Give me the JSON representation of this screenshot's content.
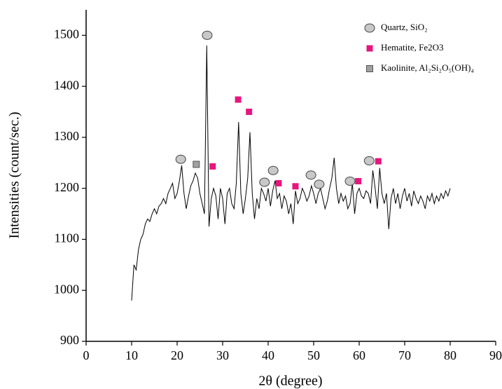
{
  "chart_data": {
    "type": "line",
    "xlabel": "2θ (degree)",
    "ylabel": "Intensities (count/sec.)",
    "xlim": [
      0,
      90
    ],
    "ylim": [
      900,
      1550
    ],
    "xticks": [
      0,
      10,
      20,
      30,
      40,
      50,
      60,
      70,
      80,
      90
    ],
    "yticks": [
      900,
      1000,
      1100,
      1200,
      1300,
      1400,
      1500
    ],
    "color": "#000000",
    "x": [
      10,
      10.5,
      11,
      11.5,
      12,
      12.5,
      13,
      13.5,
      14,
      14.5,
      15,
      15.5,
      16,
      16.5,
      17,
      17.5,
      18,
      18.5,
      19,
      19.5,
      20,
      20.5,
      21,
      21.5,
      22,
      22.5,
      23,
      23.5,
      24,
      24.5,
      25,
      25.5,
      26,
      26.5,
      27,
      27.5,
      28,
      28.5,
      29,
      29.5,
      30,
      30.5,
      31,
      31.5,
      32,
      32.5,
      33,
      33.5,
      34,
      34.5,
      35,
      35.5,
      36,
      36.5,
      37,
      37.5,
      38,
      38.5,
      39,
      39.5,
      40,
      40.5,
      41,
      41.5,
      42,
      42.5,
      43,
      43.5,
      44,
      44.5,
      45,
      45.5,
      46,
      46.5,
      47,
      47.5,
      48,
      48.5,
      49,
      49.5,
      50,
      50.5,
      51,
      51.5,
      52,
      52.5,
      53,
      53.5,
      54,
      54.5,
      55,
      55.5,
      56,
      56.5,
      57,
      57.5,
      58,
      58.5,
      59,
      59.5,
      60,
      60.5,
      61,
      61.5,
      62,
      62.5,
      63,
      63.5,
      64,
      64.5,
      65,
      65.5,
      66,
      66.5,
      67,
      67.5,
      68,
      68.5,
      69,
      69.5,
      70,
      70.5,
      71,
      71.5,
      72,
      72.5,
      73,
      73.5,
      74,
      74.5,
      75,
      75.5,
      76,
      76.5,
      77,
      77.5,
      78,
      78.5,
      79,
      79.5,
      80
    ],
    "values": [
      980,
      1050,
      1040,
      1080,
      1100,
      1110,
      1130,
      1140,
      1135,
      1150,
      1160,
      1150,
      1165,
      1170,
      1180,
      1170,
      1190,
      1200,
      1210,
      1180,
      1190,
      1215,
      1245,
      1190,
      1160,
      1185,
      1205,
      1215,
      1230,
      1220,
      1190,
      1170,
      1150,
      1480,
      1125,
      1180,
      1200,
      1185,
      1140,
      1200,
      1180,
      1130,
      1190,
      1200,
      1170,
      1160,
      1210,
      1330,
      1190,
      1150,
      1180,
      1220,
      1310,
      1190,
      1140,
      1180,
      1160,
      1200,
      1190,
      1175,
      1200,
      1165,
      1195,
      1215,
      1180,
      1190,
      1160,
      1185,
      1175,
      1150,
      1170,
      1130,
      1195,
      1170,
      1180,
      1200,
      1190,
      1175,
      1185,
      1205,
      1190,
      1170,
      1190,
      1200,
      1180,
      1160,
      1175,
      1200,
      1220,
      1260,
      1200,
      1170,
      1190,
      1175,
      1185,
      1160,
      1170,
      1210,
      1150,
      1190,
      1200,
      1185,
      1180,
      1195,
      1190,
      1170,
      1235,
      1200,
      1160,
      1240,
      1190,
      1170,
      1190,
      1120,
      1180,
      1200,
      1170,
      1190,
      1160,
      1185,
      1200,
      1175,
      1190,
      1165,
      1195,
      1180,
      1170,
      1185,
      1175,
      1160,
      1185,
      1175,
      1190,
      1170,
      1185,
      1175,
      1190,
      1180,
      1195,
      1185,
      1200
    ],
    "series": [
      {
        "name": "Quartz, SiO₂",
        "type": "scatter",
        "marker": "circle",
        "color": "#c8c8c8",
        "x": [
          20.8,
          26.6,
          39.2,
          41.1,
          49.4,
          51.2,
          58,
          62.2
        ],
        "values": [
          1257,
          1500,
          1212,
          1235,
          1226,
          1208,
          1214,
          1254
        ]
      },
      {
        "name": "Hematite, Fe2O3",
        "type": "scatter",
        "marker": "square",
        "color": "#e6167e",
        "x": [
          27.8,
          33.4,
          35.8,
          42.3,
          46,
          59.8,
          64.2
        ],
        "values": [
          1243,
          1374,
          1350,
          1210,
          1204,
          1214,
          1253
        ]
      },
      {
        "name": "Kaolinite, Al₂Si₂O₅(OH)₄",
        "type": "scatter",
        "marker": "square",
        "color": "#a0a0a0",
        "x": [
          24.2
        ],
        "values": [
          1247
        ]
      }
    ]
  }
}
